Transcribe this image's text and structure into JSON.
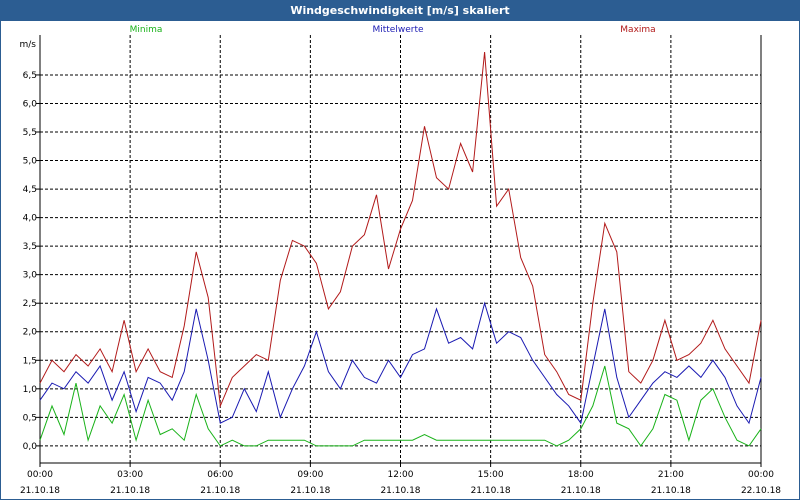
{
  "window": {
    "title": "Windgeschwindigkeit [m/s] skaliert"
  },
  "chart_data": {
    "type": "line",
    "title": "Windgeschwindigkeit [m/s] skaliert",
    "ylabel": "m/s",
    "xlabel": "",
    "ylim": [
      -0.3,
      7.2
    ],
    "xlim": [
      0,
      24
    ],
    "grid": true,
    "legend_placement": "top",
    "y_ticks": [
      "0,0",
      "0,5",
      "1,0",
      "1,5",
      "2,0",
      "2,5",
      "3,0",
      "3,5",
      "4,0",
      "4,5",
      "5,0",
      "5,5",
      "6,0",
      "6,5"
    ],
    "y_tick_values": [
      0,
      0.5,
      1,
      1.5,
      2,
      2.5,
      3,
      3.5,
      4,
      4.5,
      5,
      5.5,
      6,
      6.5
    ],
    "x_ticks": [
      {
        "time": "00:00",
        "date": "21.10.18"
      },
      {
        "time": "03:00",
        "date": "21.10.18"
      },
      {
        "time": "06:00",
        "date": "21.10.18"
      },
      {
        "time": "09:00",
        "date": "21.10.18"
      },
      {
        "time": "12:00",
        "date": "21.10.18"
      },
      {
        "time": "15:00",
        "date": "21.10.18"
      },
      {
        "time": "18:00",
        "date": "21.10.18"
      },
      {
        "time": "21:00",
        "date": "21.10.18"
      },
      {
        "time": "00:00",
        "date": "22.10.18"
      }
    ],
    "x_tick_hours": [
      0,
      3,
      6,
      9,
      12,
      15,
      18,
      21,
      24
    ],
    "series": [
      {
        "name": "Minima",
        "color": "#19b219",
        "x": [
          0,
          0.4,
          0.8,
          1.2,
          1.6,
          2.0,
          2.4,
          2.8,
          3.2,
          3.6,
          4.0,
          4.4,
          4.8,
          5.2,
          5.6,
          6.0,
          6.4,
          6.8,
          7.2,
          7.6,
          8.0,
          8.4,
          8.8,
          9.2,
          9.6,
          10.0,
          10.4,
          10.8,
          11.2,
          11.6,
          12.0,
          12.4,
          12.8,
          13.2,
          13.6,
          14.0,
          14.4,
          14.8,
          15.2,
          15.6,
          16.0,
          16.4,
          16.8,
          17.2,
          17.6,
          18.0,
          18.4,
          18.8,
          19.2,
          19.6,
          20.0,
          20.4,
          20.8,
          21.2,
          21.6,
          22.0,
          22.4,
          22.8,
          23.2,
          23.6,
          24.0
        ],
        "values": [
          0.1,
          0.7,
          0.2,
          1.1,
          0.1,
          0.7,
          0.4,
          0.9,
          0.1,
          0.8,
          0.2,
          0.3,
          0.1,
          0.9,
          0.3,
          0.0,
          0.1,
          0.0,
          0.0,
          0.1,
          0.1,
          0.1,
          0.1,
          0.0,
          0.0,
          0.0,
          0.0,
          0.1,
          0.1,
          0.1,
          0.1,
          0.1,
          0.2,
          0.1,
          0.1,
          0.1,
          0.1,
          0.1,
          0.1,
          0.1,
          0.1,
          0.1,
          0.1,
          0.0,
          0.1,
          0.3,
          0.7,
          1.4,
          0.4,
          0.3,
          0.0,
          0.3,
          0.9,
          0.8,
          0.1,
          0.8,
          1.0,
          0.5,
          0.1,
          0.0,
          0.3
        ]
      },
      {
        "name": "Mittelwerte",
        "color": "#1a1ab2",
        "x": [
          0,
          0.4,
          0.8,
          1.2,
          1.6,
          2.0,
          2.4,
          2.8,
          3.2,
          3.6,
          4.0,
          4.4,
          4.8,
          5.2,
          5.6,
          6.0,
          6.4,
          6.8,
          7.2,
          7.6,
          8.0,
          8.4,
          8.8,
          9.2,
          9.6,
          10.0,
          10.4,
          10.8,
          11.2,
          11.6,
          12.0,
          12.4,
          12.8,
          13.2,
          13.6,
          14.0,
          14.4,
          14.8,
          15.2,
          15.6,
          16.0,
          16.4,
          16.8,
          17.2,
          17.6,
          18.0,
          18.4,
          18.8,
          19.2,
          19.6,
          20.0,
          20.4,
          20.8,
          21.2,
          21.6,
          22.0,
          22.4,
          22.8,
          23.2,
          23.6,
          24.0
        ],
        "values": [
          0.8,
          1.1,
          1.0,
          1.3,
          1.1,
          1.4,
          0.8,
          1.3,
          0.6,
          1.2,
          1.1,
          0.8,
          1.3,
          2.4,
          1.5,
          0.4,
          0.5,
          1.0,
          0.6,
          1.3,
          0.5,
          1.0,
          1.4,
          2.0,
          1.3,
          1.0,
          1.5,
          1.2,
          1.1,
          1.5,
          1.2,
          1.6,
          1.7,
          2.4,
          1.8,
          1.9,
          1.7,
          2.5,
          1.8,
          2.0,
          1.9,
          1.5,
          1.2,
          0.9,
          0.7,
          0.4,
          1.4,
          2.4,
          1.2,
          0.5,
          0.8,
          1.1,
          1.3,
          1.2,
          1.4,
          1.2,
          1.5,
          1.2,
          0.7,
          0.4,
          1.2
        ]
      },
      {
        "name": "Maxima",
        "color": "#b21a1a",
        "x": [
          0,
          0.4,
          0.8,
          1.2,
          1.6,
          2.0,
          2.4,
          2.8,
          3.2,
          3.6,
          4.0,
          4.4,
          4.8,
          5.2,
          5.6,
          6.0,
          6.4,
          6.8,
          7.2,
          7.6,
          8.0,
          8.4,
          8.8,
          9.2,
          9.6,
          10.0,
          10.4,
          10.8,
          11.2,
          11.6,
          12.0,
          12.4,
          12.8,
          13.2,
          13.6,
          14.0,
          14.4,
          14.8,
          15.2,
          15.6,
          16.0,
          16.4,
          16.8,
          17.2,
          17.6,
          18.0,
          18.4,
          18.8,
          19.2,
          19.6,
          20.0,
          20.4,
          20.8,
          21.2,
          21.6,
          22.0,
          22.4,
          22.8,
          23.2,
          23.6,
          24.0
        ],
        "values": [
          1.1,
          1.5,
          1.3,
          1.6,
          1.4,
          1.7,
          1.3,
          2.2,
          1.3,
          1.7,
          1.3,
          1.2,
          2.1,
          3.4,
          2.6,
          0.7,
          1.2,
          1.4,
          1.6,
          1.5,
          2.9,
          3.6,
          3.5,
          3.2,
          2.4,
          2.7,
          3.5,
          3.7,
          4.4,
          3.1,
          3.8,
          4.3,
          5.6,
          4.7,
          4.5,
          5.3,
          4.8,
          6.9,
          4.2,
          4.5,
          3.3,
          2.8,
          1.6,
          1.3,
          0.9,
          0.8,
          2.5,
          3.9,
          3.4,
          1.3,
          1.1,
          1.5,
          2.2,
          1.5,
          1.6,
          1.8,
          2.2,
          1.7,
          1.4,
          1.1,
          2.2
        ]
      }
    ]
  }
}
